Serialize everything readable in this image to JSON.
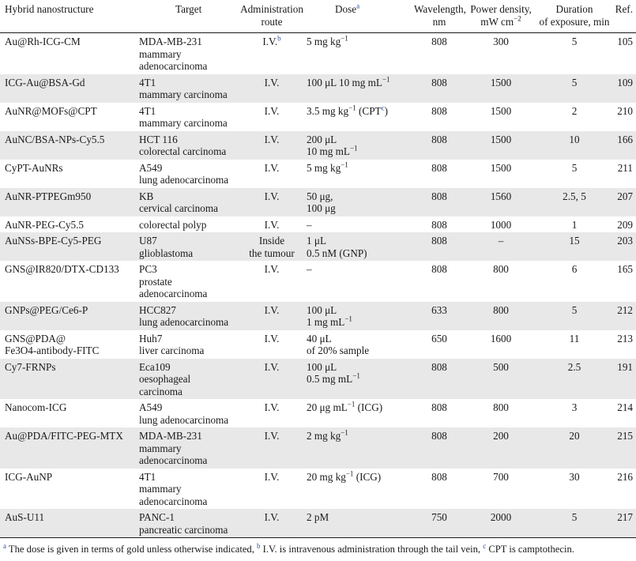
{
  "headers": {
    "c1": [
      "Hybrid nanostructure"
    ],
    "c2": [
      "Target"
    ],
    "c3": [
      "Administration",
      "route"
    ],
    "c4_text": "Dose",
    "c4_sup": "a",
    "c5": [
      "Wavelength,",
      "nm"
    ],
    "c6_line1": "Power density,",
    "c6_line2": "mW cm",
    "c6_sup": "−2",
    "c7": [
      "Duration",
      "of exposure, min"
    ],
    "c8": [
      "Ref."
    ]
  },
  "rows": [
    {
      "name": [
        "Au@Rh-ICG-CM"
      ],
      "target": [
        "MDA-MB-231",
        "mammary",
        "adenocarcinoma"
      ],
      "route": [
        "I.V."
      ],
      "route_sup": "b",
      "dose": [
        "5 mg kg"
      ],
      "dose_sup": [
        "−1"
      ],
      "wl": "808",
      "pd": "300",
      "dur": "5",
      "ref": "105"
    },
    {
      "name": [
        "ICG-Au@BSA-Gd"
      ],
      "target": [
        "4T1",
        "mammary carcinoma"
      ],
      "route": [
        "I.V."
      ],
      "route_sup": "",
      "dose": [
        "100 μL 10 mg mL"
      ],
      "dose_sup": [
        "−1"
      ],
      "wl": "808",
      "pd": "1500",
      "dur": "5",
      "ref": "109"
    },
    {
      "name": [
        "AuNR@MOFs@CPT"
      ],
      "target": [
        "4T1",
        "mammary carcinoma"
      ],
      "route": [
        "I.V."
      ],
      "route_sup": "",
      "dose": [
        "3.5 mg kg"
      ],
      "dose_sup": [
        "−1"
      ],
      "dose_extra": " (CPT",
      "dose_extra_sup": "c",
      "dose_extra_end": ")",
      "wl": "808",
      "pd": "1500",
      "dur": "2",
      "ref": "210"
    },
    {
      "name": [
        "AuNC/BSA-NPs-Cy5.5"
      ],
      "target": [
        "HCT 116",
        "colorectal carcinoma"
      ],
      "route": [
        "I.V."
      ],
      "route_sup": "",
      "dose": [
        "200 μL",
        "10 mg mL"
      ],
      "dose_sup": [
        "",
        "−1"
      ],
      "wl": "808",
      "pd": "1500",
      "dur": "10",
      "ref": "166"
    },
    {
      "name": [
        "CyPT-AuNRs"
      ],
      "target": [
        "A549",
        "lung adenocarcinoma"
      ],
      "route": [
        "I.V."
      ],
      "route_sup": "",
      "dose": [
        "5 mg kg"
      ],
      "dose_sup": [
        "−1"
      ],
      "wl": "808",
      "pd": "1500",
      "dur": "5",
      "ref": "211"
    },
    {
      "name": [
        "AuNR-PTPEGm950"
      ],
      "target": [
        "KB",
        "cervical carcinoma"
      ],
      "route": [
        "I.V."
      ],
      "route_sup": "",
      "dose": [
        "50 μg,",
        "100 μg"
      ],
      "dose_sup": [
        "",
        ""
      ],
      "wl": "808",
      "pd": "1560",
      "dur": "2.5, 5",
      "ref": "207"
    },
    {
      "name": [
        "AuNR-PEG-Cy5.5"
      ],
      "target": [
        "colorectal polyp"
      ],
      "route": [
        "I.V."
      ],
      "route_sup": "",
      "dose": [
        "–"
      ],
      "dose_sup": [
        ""
      ],
      "wl": "808",
      "pd": "1000",
      "dur": "1",
      "ref": "209"
    },
    {
      "name": [
        "AuNSs-BPE-Cy5-PEG"
      ],
      "target": [
        "U87",
        "glioblastoma"
      ],
      "route": [
        "Inside",
        "the tumour"
      ],
      "route_sup": "",
      "dose": [
        "1 μL",
        "0.5 nM (GNP)"
      ],
      "dose_sup": [
        "",
        ""
      ],
      "wl": "808",
      "pd": "–",
      "dur": "15",
      "ref": "203"
    },
    {
      "name": [
        "GNS@IR820/DTX-CD133"
      ],
      "target": [
        "PC3",
        "prostate",
        "adenocarcinoma"
      ],
      "route": [
        "I.V."
      ],
      "route_sup": "",
      "dose": [
        "–"
      ],
      "dose_sup": [
        ""
      ],
      "wl": "808",
      "pd": "800",
      "dur": "6",
      "ref": "165"
    },
    {
      "name": [
        "GNPs@PEG/Ce6-P"
      ],
      "target": [
        "HCC827",
        "lung adenocarcinoma"
      ],
      "route": [
        "I.V."
      ],
      "route_sup": "",
      "dose": [
        "100 μL",
        "1 mg mL"
      ],
      "dose_sup": [
        "",
        "−1"
      ],
      "wl": "633",
      "pd": "800",
      "dur": "5",
      "ref": "212"
    },
    {
      "name": [
        "GNS@PDA@",
        "Fe3O4-antibody-FITC"
      ],
      "target": [
        "Huh7",
        "liver carcinoma"
      ],
      "route": [
        "I.V."
      ],
      "route_sup": "",
      "dose": [
        "40 μL",
        "of 20% sample"
      ],
      "dose_sup": [
        "",
        ""
      ],
      "wl": "650",
      "pd": "1600",
      "dur": "11",
      "ref": "213"
    },
    {
      "name": [
        "Cy7-FRNPs"
      ],
      "target": [
        "Eca109",
        "oesophageal",
        "carcinoma"
      ],
      "route": [
        "I.V."
      ],
      "route_sup": "",
      "dose": [
        "100 μL",
        "0.5 mg mL"
      ],
      "dose_sup": [
        "",
        "−1"
      ],
      "wl": "808",
      "pd": "500",
      "dur": "2.5",
      "ref": "191"
    },
    {
      "name": [
        "Nanocom-ICG"
      ],
      "target": [
        "A549",
        "lung adenocarcinoma"
      ],
      "route": [
        "I.V."
      ],
      "route_sup": "",
      "dose": [
        "20 μg mL"
      ],
      "dose_sup": [
        "−1"
      ],
      "dose_extra": " (ICG)",
      "dose_extra_sup": "",
      "dose_extra_end": "",
      "wl": "808",
      "pd": "800",
      "dur": "3",
      "ref": "214"
    },
    {
      "name": [
        "Au@PDA/FITC-PEG-MTX"
      ],
      "target": [
        "MDA-MB-231",
        "mammary",
        "adenocarcinoma"
      ],
      "route": [
        "I.V."
      ],
      "route_sup": "",
      "dose": [
        "2 mg kg"
      ],
      "dose_sup": [
        "−1"
      ],
      "wl": "808",
      "pd": "200",
      "dur": "20",
      "ref": "215"
    },
    {
      "name": [
        "ICG-AuNP"
      ],
      "target": [
        "4T1",
        "mammary",
        "adenocarcinoma"
      ],
      "route": [
        "I.V."
      ],
      "route_sup": "",
      "dose": [
        "20 mg kg"
      ],
      "dose_sup": [
        "−1"
      ],
      "dose_extra": " (ICG)",
      "dose_extra_sup": "",
      "dose_extra_end": "",
      "wl": "808",
      "pd": "700",
      "dur": "30",
      "ref": "216"
    },
    {
      "name": [
        "AuS-U11"
      ],
      "target": [
        "PANC-1",
        "pancreatic carcinoma"
      ],
      "route": [
        "I.V."
      ],
      "route_sup": "",
      "dose": [
        "2 pM"
      ],
      "dose_sup": [
        ""
      ],
      "wl": "750",
      "pd": "2000",
      "dur": "5",
      "ref": "217"
    }
  ],
  "footnote": {
    "a_mark": "a",
    "a_text": " The dose is given in terms of gold unless otherwise indicated, ",
    "b_mark": "b",
    "b_text": " I.V. is intravenous administration through the tail vein, ",
    "c_mark": "c",
    "c_text": " CPT is camptothecin."
  },
  "colors": {
    "stripe": "#e8e8e8",
    "link": "#2b4ea0",
    "text": "#1a1a1a"
  }
}
